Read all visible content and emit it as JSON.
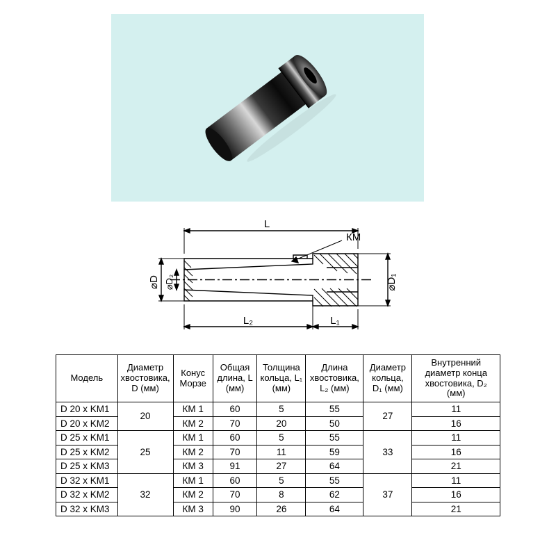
{
  "photo": {
    "background_color": "#d4f0ef",
    "object": "cylindrical-sleeve"
  },
  "diagram": {
    "labels": {
      "L": "L",
      "KM": "КМ",
      "D": "⌀D",
      "D2": "⌀D₂",
      "D1": "⌀D₁",
      "L2": "L₂",
      "L1": "L₁"
    },
    "line_color": "#000000",
    "line_width": 1.4,
    "hatch_spacing": 6
  },
  "table": {
    "header_fontsize": 13,
    "cell_fontsize": 13.5,
    "border_color": "#000000",
    "columns": [
      {
        "key": "model",
        "label": "Модель",
        "width": "14%"
      },
      {
        "key": "D",
        "label": "Диаметр хвостовика, D (мм)",
        "width": "12%"
      },
      {
        "key": "morse",
        "label": "Конус Морзе",
        "width": "9%"
      },
      {
        "key": "L",
        "label": "Общая длина, L (мм)",
        "width": "10%"
      },
      {
        "key": "L1",
        "label": "Толщина кольца, L₁ (мм)",
        "width": "11%"
      },
      {
        "key": "L2",
        "label": "Длина хвостовика, L₂ (мм)",
        "width": "13%"
      },
      {
        "key": "D1",
        "label": "Диаметр кольца, D₁ (мм)",
        "width": "11%"
      },
      {
        "key": "D2",
        "label": "Внутренний диаметр конца хвостовика, D₂ (мм)",
        "width": "20%"
      }
    ],
    "groups": [
      {
        "D": "20",
        "D1": "27",
        "rows": [
          {
            "model": "D 20 x KM1",
            "morse": "КМ 1",
            "L": "60",
            "L1": "5",
            "L2": "55",
            "D2": "11"
          },
          {
            "model": "D 20 x KM2",
            "morse": "КМ 2",
            "L": "70",
            "L1": "20",
            "L2": "50",
            "D2": "16"
          }
        ]
      },
      {
        "D": "25",
        "D1": "33",
        "rows": [
          {
            "model": "D 25 x KM1",
            "morse": "КМ 1",
            "L": "60",
            "L1": "5",
            "L2": "55",
            "D2": "11"
          },
          {
            "model": "D 25 x KM2",
            "morse": "КМ 2",
            "L": "70",
            "L1": "11",
            "L2": "59",
            "D2": "16"
          },
          {
            "model": "D 25 x KM3",
            "morse": "КМ 3",
            "L": "91",
            "L1": "27",
            "L2": "64",
            "D2": "21"
          }
        ]
      },
      {
        "D": "32",
        "D1": "37",
        "rows": [
          {
            "model": "D 32 x KM1",
            "morse": "КМ 1",
            "L": "60",
            "L1": "5",
            "L2": "55",
            "D2": "11"
          },
          {
            "model": "D 32 x KM2",
            "morse": "КМ 2",
            "L": "70",
            "L1": "8",
            "L2": "62",
            "D2": "16"
          },
          {
            "model": "D 32 x KM3",
            "morse": "КМ 3",
            "L": "90",
            "L1": "26",
            "L2": "64",
            "D2": "21"
          }
        ]
      }
    ]
  }
}
